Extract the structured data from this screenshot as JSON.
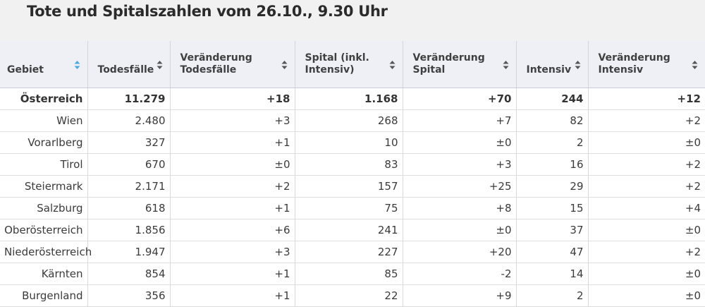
{
  "title": "Tote und Spitalszahlen vom 26.10., 9.30 Uhr",
  "colors": {
    "header_bg": "#eef0f5",
    "title_bg": "#f1f1f1",
    "sort_active": "#4aa8e0",
    "sort_inactive": "#555555"
  },
  "columns": [
    {
      "label": "Gebiet",
      "sort_icon": "sort-active-icon"
    },
    {
      "label": "Todesfälle",
      "sort_icon": "sort-icon"
    },
    {
      "label": "Veränderung Todesfälle",
      "sort_icon": "sort-icon"
    },
    {
      "label": "Spital (inkl. Intensiv)",
      "sort_icon": "sort-icon"
    },
    {
      "label": "Veränderung Spital",
      "sort_icon": "sort-icon"
    },
    {
      "label": "Intensiv",
      "sort_icon": "sort-icon"
    },
    {
      "label": "Veränderung Intensiv",
      "sort_icon": "sort-icon"
    }
  ],
  "rows": [
    [
      "Österreich",
      "11.279",
      "+18",
      "1.168",
      "+70",
      "244",
      "+12"
    ],
    [
      "Wien",
      "2.480",
      "+3",
      "268",
      "+7",
      "82",
      "+2"
    ],
    [
      "Vorarlberg",
      "327",
      "+1",
      "10",
      "±0",
      "2",
      "±0"
    ],
    [
      "Tirol",
      "670",
      "±0",
      "83",
      "+3",
      "16",
      "+2"
    ],
    [
      "Steiermark",
      "2.171",
      "+2",
      "157",
      "+25",
      "29",
      "+2"
    ],
    [
      "Salzburg",
      "618",
      "+1",
      "75",
      "+8",
      "15",
      "+4"
    ],
    [
      "Oberösterreich",
      "1.856",
      "+6",
      "241",
      "±0",
      "37",
      "±0"
    ],
    [
      "Niederösterreich",
      "1.947",
      "+3",
      "227",
      "+20",
      "47",
      "+2"
    ],
    [
      "Kärnten",
      "854",
      "+1",
      "85",
      "-2",
      "14",
      "±0"
    ],
    [
      "Burgenland",
      "356",
      "+1",
      "22",
      "+9",
      "2",
      "±0"
    ]
  ]
}
